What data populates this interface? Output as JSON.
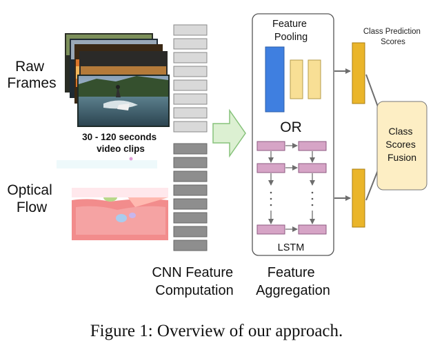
{
  "labels": {
    "raw_frames": [
      "Raw",
      "Frames"
    ],
    "clip_length": [
      "30 - 120 seconds",
      "video clips"
    ],
    "optical_flow": [
      "Optical",
      "Flow"
    ],
    "cnn": [
      "CNN Feature",
      "Computation"
    ],
    "aggregation": [
      "Feature",
      "Aggregation"
    ],
    "feature_pooling": [
      "Feature",
      "Pooling"
    ],
    "or": "OR",
    "lstm": "LSTM",
    "class_prediction": [
      "Class Prediction",
      "Scores"
    ],
    "fusion": [
      "Class",
      "Scores",
      "Fusion"
    ]
  },
  "caption": "Figure 1: Overview of our approach.",
  "colors": {
    "pool_blue": "#3f7fe0",
    "pool_yellow": "#f8df95",
    "lstm_cell": "#d6a4c6",
    "score_bar": "#eab52a",
    "fusion_box": "#fdeec4",
    "arrow_green": "#dcf0d2",
    "frame_feature": "#d9d9d9",
    "flow_feature": "#8e8e8e"
  }
}
